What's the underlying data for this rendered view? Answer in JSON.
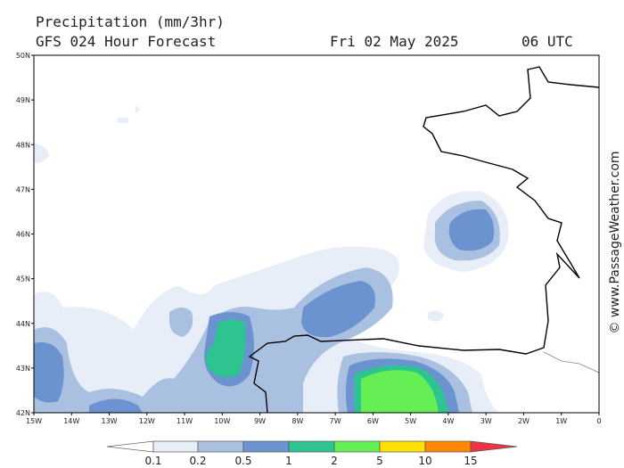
{
  "header": {
    "title": "Precipitation (mm/3hr)",
    "subtitle": "GFS 024 Hour Forecast",
    "date": "Fri 02 May 2025",
    "time": "06 UTC"
  },
  "map": {
    "lat_labels": [
      "50N",
      "49N",
      "48N",
      "47N",
      "46N",
      "45N",
      "44N",
      "43N",
      "42N"
    ],
    "lon_labels": [
      "15W",
      "14W",
      "13W",
      "12W",
      "11W",
      "10W",
      "9W",
      "8W",
      "7W",
      "6W",
      "5W",
      "4W",
      "3W",
      "2W",
      "1W",
      "0"
    ]
  },
  "legend": {
    "labels": [
      "0.1",
      "0.2",
      "0.5",
      "1",
      "2",
      "5",
      "10",
      "15"
    ]
  },
  "watermark": "© www.PassageWeather.com"
}
